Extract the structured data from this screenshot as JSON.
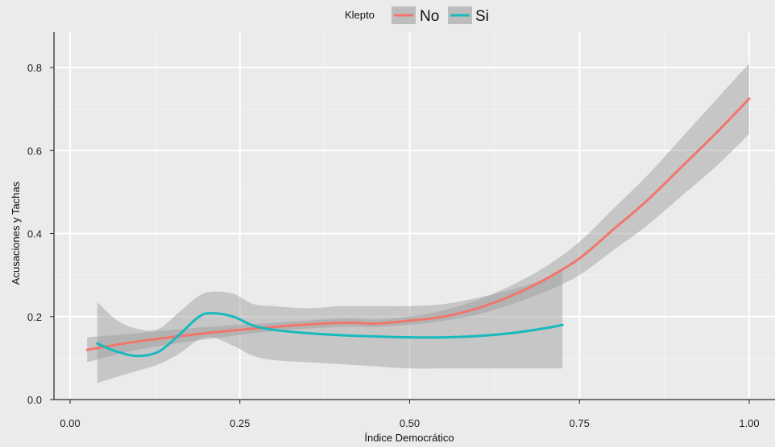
{
  "chart_data": {
    "type": "line",
    "xlabel": "Índice Democrático",
    "ylabel": "Acusaciones y Tachas",
    "xlim": [
      -0.02,
      1.05
    ],
    "ylim": [
      0.0,
      0.85
    ],
    "xticks": [
      0.0,
      0.25,
      0.5,
      0.75,
      1.0
    ],
    "xtick_labels": [
      "0.00",
      "0.25",
      "0.50",
      "0.75",
      "1.00"
    ],
    "yticks": [
      0.0,
      0.2,
      0.4,
      0.6,
      0.8
    ],
    "ytick_labels": [
      "0.0",
      "0.2",
      "0.4",
      "0.6",
      "0.8"
    ],
    "grid": true,
    "legend": {
      "title": "Klepto",
      "placement": "top"
    },
    "series": [
      {
        "name": "No",
        "color": "#f0766c",
        "x": [
          0.025,
          0.1,
          0.2,
          0.3,
          0.4,
          0.45,
          0.5,
          0.55,
          0.6,
          0.65,
          0.7,
          0.75,
          0.8,
          0.85,
          0.9,
          0.95,
          1.0
        ],
        "y": [
          0.12,
          0.14,
          0.16,
          0.175,
          0.185,
          0.183,
          0.19,
          0.2,
          0.22,
          0.25,
          0.29,
          0.34,
          0.41,
          0.48,
          0.56,
          0.64,
          0.725
        ],
        "lower": [
          0.09,
          0.12,
          0.145,
          0.165,
          0.175,
          0.175,
          0.18,
          0.19,
          0.205,
          0.23,
          0.26,
          0.3,
          0.36,
          0.42,
          0.49,
          0.56,
          0.64
        ],
        "upper": [
          0.15,
          0.16,
          0.175,
          0.185,
          0.195,
          0.193,
          0.2,
          0.215,
          0.24,
          0.275,
          0.32,
          0.38,
          0.46,
          0.54,
          0.63,
          0.72,
          0.81
        ]
      },
      {
        "name": "Si",
        "color": "#18b9bd",
        "x": [
          0.04,
          0.07,
          0.1,
          0.13,
          0.16,
          0.19,
          0.21,
          0.24,
          0.27,
          0.3,
          0.35,
          0.4,
          0.45,
          0.5,
          0.55,
          0.6,
          0.65,
          0.7,
          0.725
        ],
        "y": [
          0.135,
          0.115,
          0.105,
          0.115,
          0.155,
          0.2,
          0.208,
          0.2,
          0.178,
          0.168,
          0.16,
          0.155,
          0.152,
          0.15,
          0.15,
          0.153,
          0.16,
          0.172,
          0.18
        ],
        "lower": [
          0.04,
          0.055,
          0.07,
          0.085,
          0.11,
          0.145,
          0.15,
          0.13,
          0.105,
          0.095,
          0.09,
          0.085,
          0.08,
          0.075,
          0.075,
          0.075,
          0.075,
          0.075,
          0.075
        ],
        "upper": [
          0.235,
          0.19,
          0.17,
          0.17,
          0.21,
          0.25,
          0.26,
          0.255,
          0.23,
          0.225,
          0.22,
          0.225,
          0.225,
          0.225,
          0.23,
          0.245,
          0.265,
          0.29,
          0.31
        ]
      }
    ]
  }
}
